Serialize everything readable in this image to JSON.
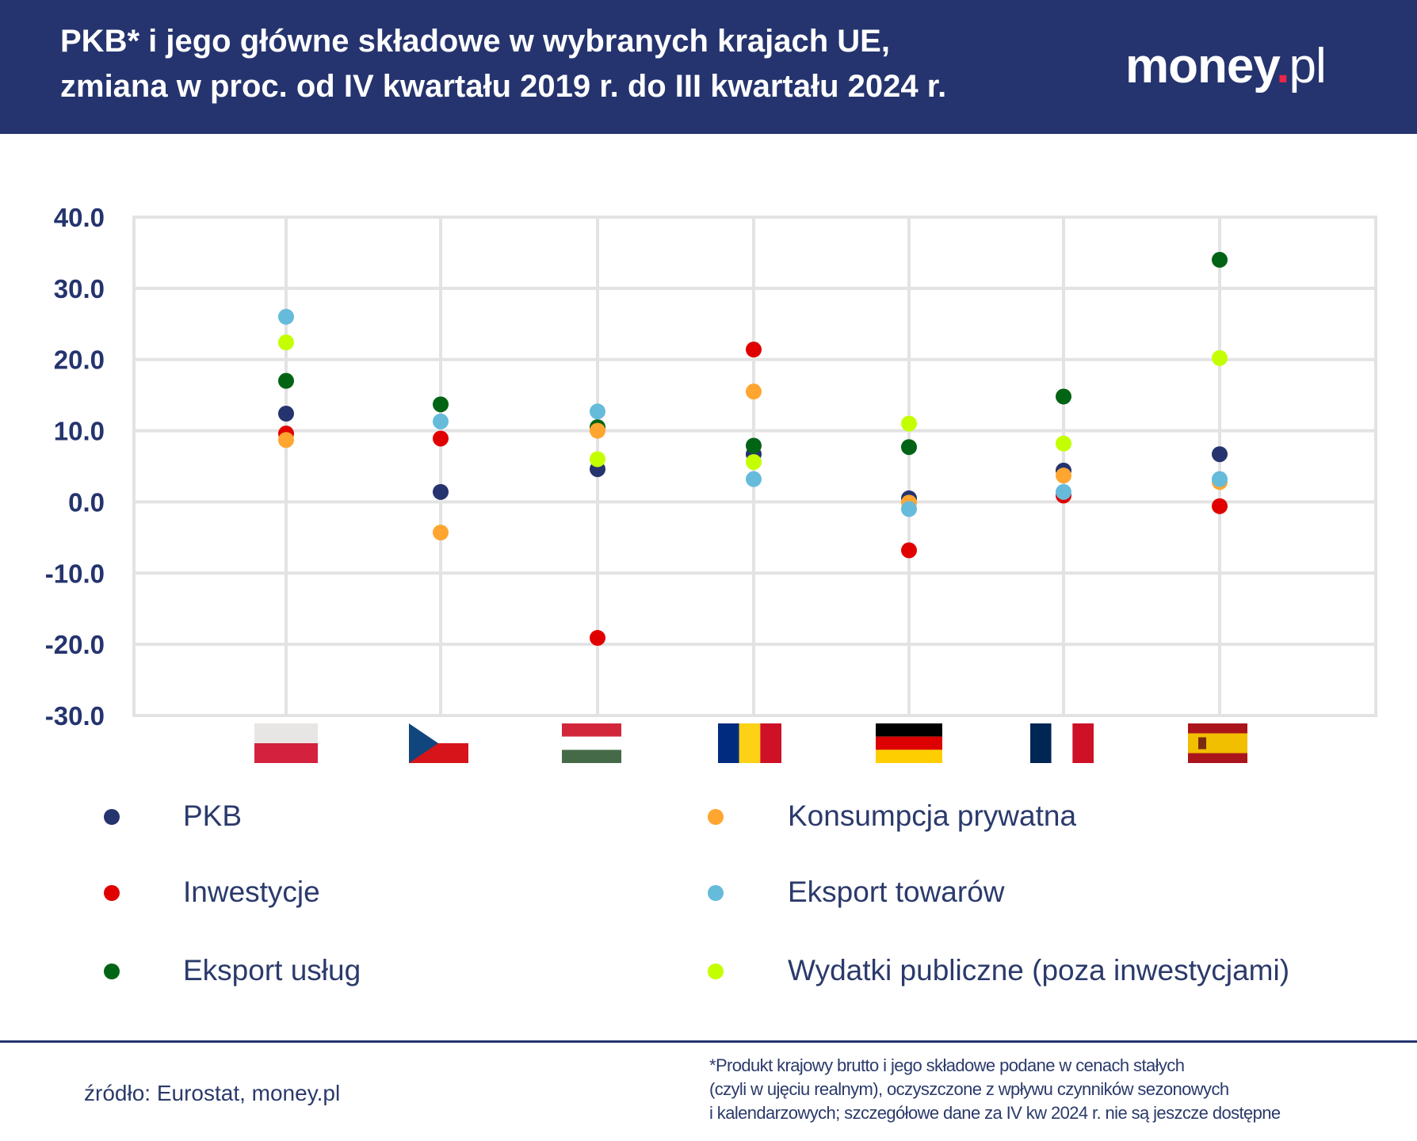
{
  "header": {
    "title_line1": "PKB* i jego główne składowe w wybranych krajach UE,",
    "title_line2": "zmiana w proc. od IV kwartału 2019 r. do III kwartału 2024 r.",
    "logo_text": "money.pl"
  },
  "chart_data": {
    "type": "scatter",
    "ylim": [
      -30,
      40
    ],
    "yticks": [
      "40.0",
      "30.0",
      "20.0",
      "10.0",
      "0.0",
      "-10.0",
      "-20.0",
      "-30.0"
    ],
    "ytick_values": [
      40,
      30,
      20,
      10,
      0,
      -10,
      -20,
      -30
    ],
    "grid": true,
    "legend_placement": "bottom",
    "categories": [
      "Polska",
      "Czechy",
      "Węgry",
      "Rumunia",
      "Niemcy",
      "Francja",
      "Hiszpania"
    ],
    "category_flags": [
      "flag-poland",
      "flag-czechia",
      "flag-hungary",
      "flag-romania",
      "flag-germany",
      "flag-france",
      "flag-spain"
    ],
    "series": [
      {
        "name": "PKB",
        "color": "#25346e",
        "values": [
          12.4,
          1.4,
          4.6,
          6.7,
          0.5,
          4.4,
          6.7
        ]
      },
      {
        "name": "Inwestycje",
        "color": "#e10000",
        "values": [
          9.6,
          8.9,
          -19.1,
          21.4,
          -6.8,
          0.9,
          -0.6
        ]
      },
      {
        "name": "Eksport usług",
        "color": "#006414",
        "values": [
          17.0,
          13.7,
          10.5,
          7.9,
          7.7,
          14.8,
          34.0
        ]
      },
      {
        "name": "Konsumpcja prywatna",
        "color": "#ffa530",
        "values": [
          8.7,
          -4.3,
          10.0,
          15.5,
          -0.1,
          3.7,
          2.8
        ]
      },
      {
        "name": "Eksport towarów",
        "color": "#66bbdb",
        "values": [
          26.0,
          11.3,
          12.7,
          3.2,
          -1.0,
          1.4,
          3.2
        ]
      },
      {
        "name": "Wydatki publiczne (poza inwestycjami)",
        "color": "#c3ff00",
        "values": [
          22.4,
          null,
          6.0,
          5.6,
          11.0,
          8.2,
          20.2
        ]
      }
    ]
  },
  "legend": {
    "left": [
      "PKB",
      "Inwestycje",
      "Eksport usług"
    ],
    "right": [
      "Konsumpcja prywatna",
      "Eksport towarów",
      "Wydatki publiczne (poza inwestycjami)"
    ]
  },
  "footer": {
    "source": "źródło: Eurostat, money.pl",
    "footnote_line1": "*Produkt krajowy brutto i jego składowe podane w cenach stałych",
    "footnote_line2": "(czyli w ujęciu realnym), oczyszczone z wpływu czynników sezonowych",
    "footnote_line3": "i kalendarzowych; szczegółowe dane za IV kw 2024 r. nie są jeszcze dostępne"
  }
}
